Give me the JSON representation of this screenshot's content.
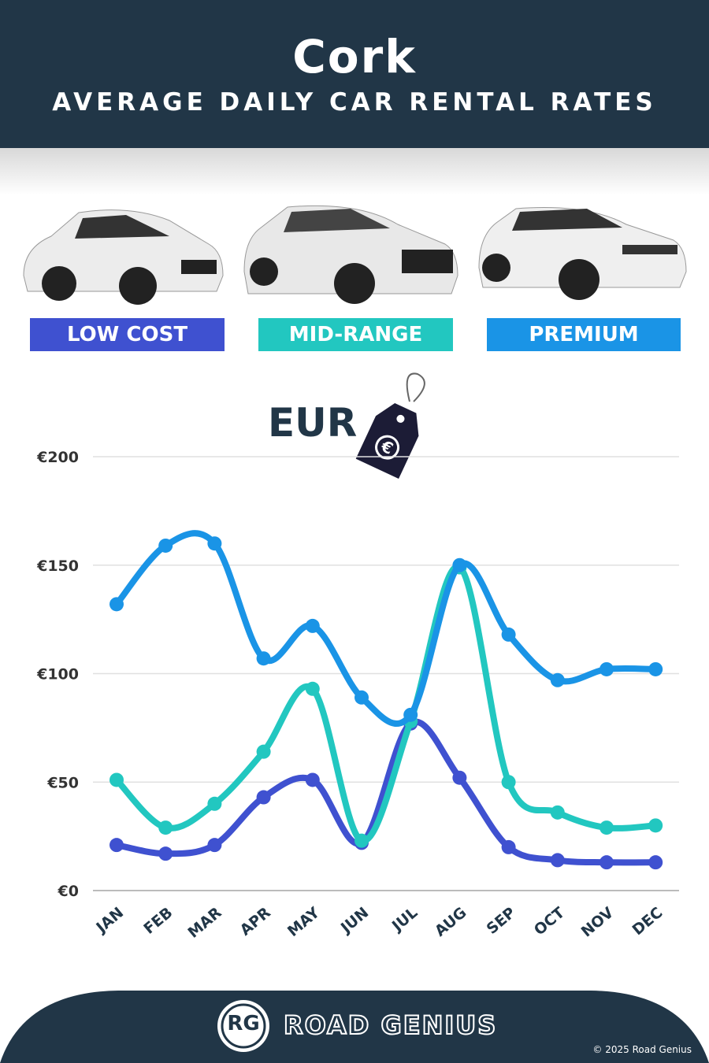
{
  "header": {
    "title": "Cork",
    "subtitle": "AVERAGE DAILY CAR RENTAL RATES"
  },
  "categories_labels": [
    {
      "label": "LOW COST",
      "color": "#3f51d0"
    },
    {
      "label": "MID-RANGE",
      "color": "#22c7c0"
    },
    {
      "label": "PREMIUM",
      "color": "#1a94e6"
    }
  ],
  "currency": {
    "label": "EUR",
    "icon": "euro-price-tag-icon"
  },
  "chart_data": {
    "type": "line",
    "categories": [
      "JAN",
      "FEB",
      "MAR",
      "APR",
      "MAY",
      "JUN",
      "JUL",
      "AUG",
      "SEP",
      "OCT",
      "NOV",
      "DEC"
    ],
    "ylim": [
      0,
      200
    ],
    "yticks": [
      0,
      50,
      100,
      150,
      200
    ],
    "ytick_labels": [
      "€0",
      "€50",
      "€100",
      "€150",
      "€200"
    ],
    "grid": true,
    "series": [
      {
        "name": "PREMIUM",
        "color": "#1a94e6",
        "values": [
          132,
          159,
          160,
          107,
          122,
          89,
          81,
          150,
          118,
          97,
          102,
          102
        ]
      },
      {
        "name": "MID-RANGE",
        "color": "#22c7c0",
        "values": [
          51,
          29,
          40,
          64,
          93,
          23,
          78,
          149,
          50,
          36,
          29,
          30
        ]
      },
      {
        "name": "LOW COST",
        "color": "#3f51d0",
        "values": [
          21,
          17,
          21,
          43,
          51,
          22,
          77,
          52,
          20,
          14,
          13,
          13
        ]
      }
    ]
  },
  "footer": {
    "logo_text": "RG",
    "brand": "ROAD GENIUS",
    "copyright": "© 2025 Road Genius"
  }
}
